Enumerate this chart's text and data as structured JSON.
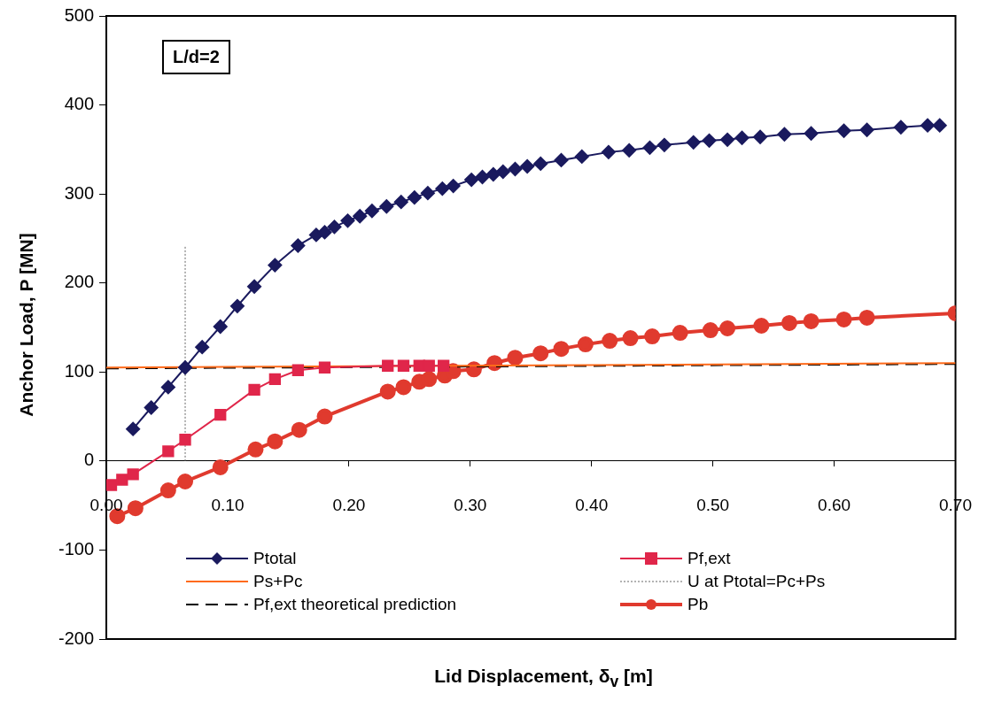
{
  "chart_data": {
    "type": "line",
    "xlabel": "Lid Displacement, δ$_{v}$ [m]",
    "ylabel": "Anchor Load, P [MN]",
    "annotations": [
      "L/d=2"
    ],
    "xlim": [
      0,
      0.7
    ],
    "xticks": [
      {
        "value": 0,
        "label": "0.00"
      },
      {
        "value": 0.1,
        "label": "0.10"
      },
      {
        "value": 0.2,
        "label": "0.20"
      },
      {
        "value": 0.3,
        "label": "0.30"
      },
      {
        "value": 0.4,
        "label": "0.40"
      },
      {
        "value": 0.5,
        "label": "0.50"
      },
      {
        "value": 0.6,
        "label": "0.60"
      },
      {
        "value": 0.7,
        "label": "0.70"
      }
    ],
    "ylim": [
      -200,
      500
    ],
    "yticks": [
      -200,
      -100,
      0,
      100,
      200,
      300,
      400,
      500
    ],
    "grid": false,
    "legend": "bottom",
    "series": [
      {
        "name": "Ptotal",
        "color": "#1a1a5e",
        "marker": "diamond",
        "line_style": "solid",
        "x": [
          0.022,
          0.037,
          0.051,
          0.065,
          0.079,
          0.094,
          0.108,
          0.122,
          0.139,
          0.158,
          0.173,
          0.18,
          0.188,
          0.199,
          0.209,
          0.219,
          0.231,
          0.243,
          0.254,
          0.265,
          0.277,
          0.286,
          0.301,
          0.31,
          0.319,
          0.327,
          0.337,
          0.347,
          0.358,
          0.375,
          0.392,
          0.414,
          0.431,
          0.448,
          0.46,
          0.484,
          0.497,
          0.512,
          0.524,
          0.539,
          0.559,
          0.581,
          0.608,
          0.627,
          0.655,
          0.677,
          0.687
        ],
        "values": [
          36,
          60,
          83,
          105,
          128,
          151,
          174,
          196,
          220,
          242,
          254,
          257,
          263,
          270,
          275,
          281,
          286,
          291,
          296,
          301,
          306,
          309,
          316,
          319,
          322,
          325,
          328,
          331,
          334,
          338,
          342,
          347,
          349,
          352,
          355,
          358,
          360,
          361,
          363,
          364,
          367,
          368,
          371,
          372,
          375,
          377,
          377
        ]
      },
      {
        "name": "Pf,ext",
        "color": "#e0264a",
        "marker": "square",
        "line_style": "solid",
        "x": [
          0.004,
          0.013,
          0.022,
          0.051,
          0.065,
          0.094,
          0.122,
          0.139,
          0.158,
          0.18,
          0.232,
          0.245,
          0.258,
          0.266,
          0.278
        ],
        "values": [
          -27,
          -21,
          -15,
          11,
          24,
          52,
          80,
          92,
          102,
          105,
          107,
          107,
          107,
          107,
          107
        ]
      },
      {
        "name": "Ps+Pc",
        "color": "#ff6a1a",
        "marker": "none",
        "line_style": "solid",
        "x": [
          0,
          0.7
        ],
        "values": [
          105,
          110
        ]
      },
      {
        "name": "U at Ptotal=Pc+Ps",
        "color": "#666666",
        "marker": "none",
        "line_style": "dotted",
        "x": [
          0.065,
          0.065
        ],
        "values": [
          0,
          242
        ]
      },
      {
        "name": "Pf,ext theoretical prediction",
        "color": "#000000",
        "marker": "none",
        "line_style": "dashed",
        "x": [
          0,
          0.7
        ],
        "values": [
          104,
          109
        ]
      },
      {
        "name": "Pb",
        "color": "#e03a2e",
        "marker": "circle",
        "line_style": "solid",
        "x": [
          0.009,
          0.024,
          0.051,
          0.065,
          0.094,
          0.123,
          0.139,
          0.159,
          0.18,
          0.232,
          0.245,
          0.258,
          0.266,
          0.279,
          0.286,
          0.303,
          0.32,
          0.337,
          0.358,
          0.375,
          0.395,
          0.415,
          0.432,
          0.45,
          0.473,
          0.498,
          0.512,
          0.54,
          0.563,
          0.581,
          0.608,
          0.627,
          0.7
        ],
        "values": [
          -62,
          -53,
          -33,
          -23,
          -7,
          13,
          22,
          35,
          50,
          78,
          83,
          89,
          92,
          96,
          101,
          103,
          110,
          116,
          121,
          126,
          131,
          135,
          138,
          140,
          144,
          147,
          149,
          152,
          155,
          157,
          159,
          161,
          166
        ]
      }
    ]
  }
}
